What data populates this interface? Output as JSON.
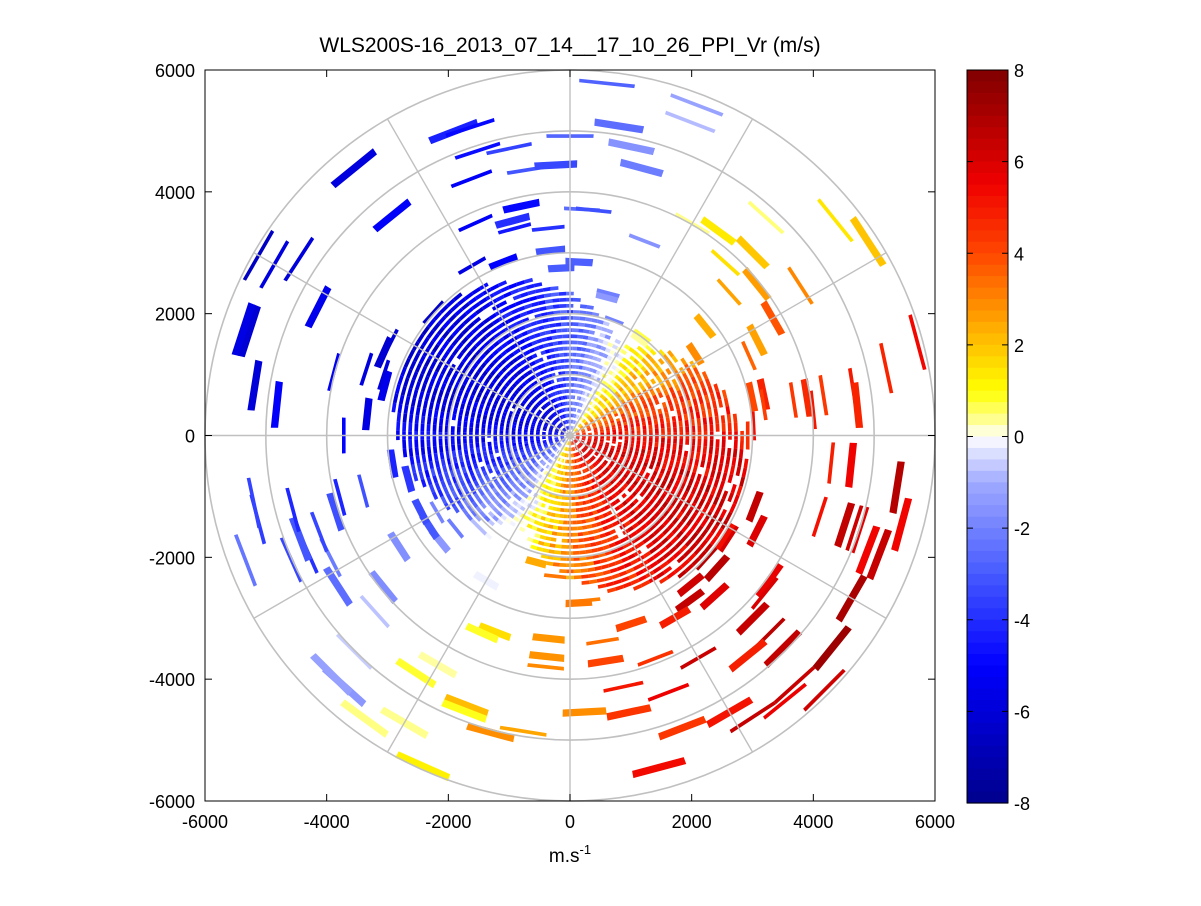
{
  "chart_data": {
    "type": "heatmap",
    "subtype": "polar PPI scan",
    "title": "WLS200S-16_2013_07_14__17_10_26_PPI_Vr (m/s)",
    "xlabel": "m.s",
    "xlabel_superscript": "-1",
    "ylabel": "",
    "xlim": [
      -6000,
      6000
    ],
    "ylim": [
      -6000,
      6000
    ],
    "xticks": [
      "-6000",
      "-4000",
      "-2000",
      "0",
      "2000",
      "4000",
      "6000"
    ],
    "yticks": [
      "6000",
      "4000",
      "2000",
      "0",
      "-2000",
      "-4000",
      "-6000"
    ],
    "grid": true,
    "range_rings": [
      1000,
      2000,
      3000,
      4000,
      5000,
      6000
    ],
    "spokes_deg": [
      0,
      30,
      60,
      90,
      120,
      150,
      180,
      210,
      240,
      270,
      300,
      330
    ],
    "colorbar": {
      "min": -8,
      "max": 8,
      "ticks": [
        "8",
        "6",
        "4",
        "2",
        "0",
        "-2",
        "-4",
        "-6",
        "-8"
      ],
      "colormap": "blue-white-yellow-red"
    },
    "wind_field": {
      "peak_velocity": 6,
      "flow_axis_deg": 120,
      "dense_max_range": 3000,
      "noisy_max_range": 6000,
      "empty_sectors_deg": [
        [
          -2,
          4
        ]
      ]
    }
  }
}
